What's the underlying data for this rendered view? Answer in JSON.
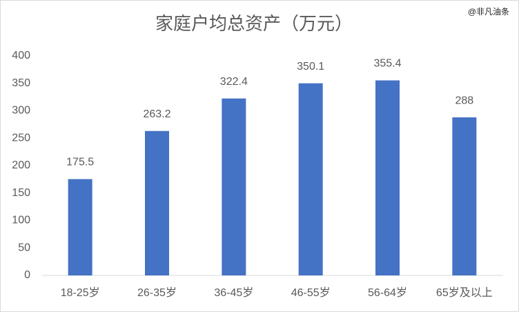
{
  "chart_data": {
    "type": "bar",
    "title": "家庭户均总资产（万元）",
    "watermark": "@非凡油条",
    "categories": [
      "18-25岁",
      "26-35岁",
      "36-45岁",
      "46-55岁",
      "56-64岁",
      "65岁及以上"
    ],
    "values": [
      175.5,
      263.2,
      322.4,
      350.1,
      355.4,
      288
    ],
    "color": "#4472c4",
    "ylim": [
      0,
      400
    ],
    "yticks": [
      0,
      50,
      100,
      150,
      200,
      250,
      300,
      350,
      400
    ],
    "grid": false
  }
}
